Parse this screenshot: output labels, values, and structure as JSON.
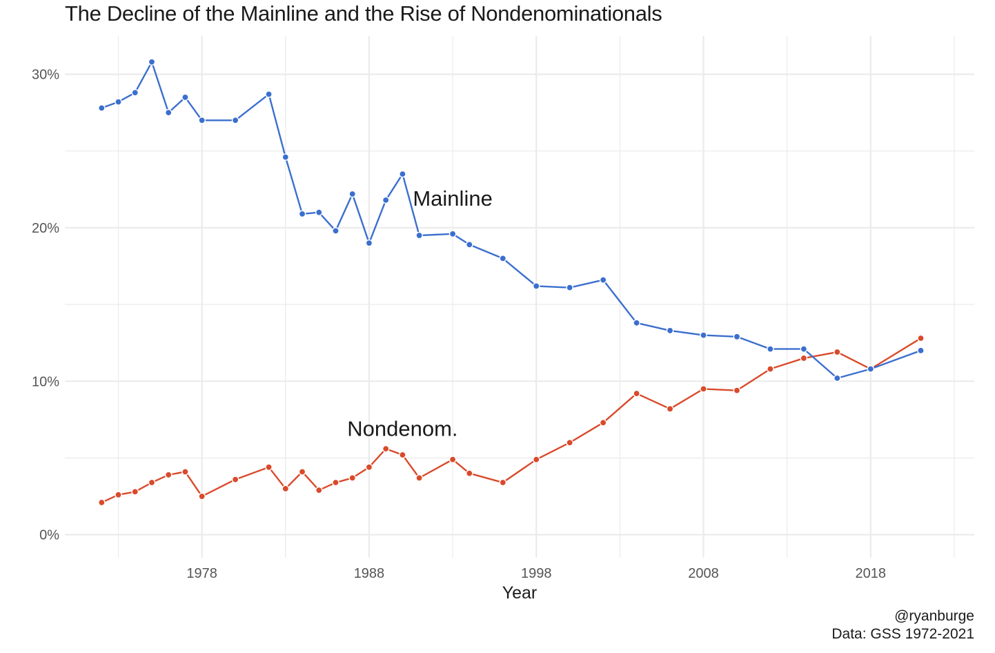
{
  "title": "The Decline of the Mainline and the Rise of Nondenominationals",
  "caption": {
    "author": "@ryanburge",
    "source": "Data: GSS 1972-2021"
  },
  "colors": {
    "mainline": "#3b6fce",
    "nondenom": "#d94a2b",
    "grid": "#ebebeb"
  },
  "chart_data": {
    "type": "line",
    "xlabel": "Year",
    "ylabel": "",
    "xlim": [
      1969.8,
      2024.2
    ],
    "ylim": [
      -1.5,
      32.5
    ],
    "x_ticks": [
      1978,
      1988,
      1998,
      2008,
      2018
    ],
    "x_tick_labels": [
      "1978",
      "1988",
      "1998",
      "2008",
      "2018"
    ],
    "y_ticks": [
      0,
      10,
      20,
      30
    ],
    "y_tick_labels": [
      "0%",
      "10%",
      "20%",
      "30%"
    ],
    "grid": true,
    "legend": "none (direct labels)",
    "series": [
      {
        "name": "Mainline",
        "color": "#3b6fce",
        "x": [
          1972,
          1973,
          1974,
          1975,
          1976,
          1977,
          1978,
          1980,
          1982,
          1983,
          1984,
          1985,
          1986,
          1987,
          1988,
          1989,
          1990,
          1991,
          1993,
          1994,
          1996,
          1998,
          2000,
          2002,
          2004,
          2006,
          2008,
          2010,
          2012,
          2014,
          2016,
          2018,
          2021
        ],
        "y": [
          27.8,
          28.2,
          28.8,
          30.8,
          27.5,
          28.5,
          27.0,
          27.0,
          28.7,
          24.6,
          20.9,
          21.0,
          19.8,
          22.2,
          19.0,
          21.8,
          23.5,
          19.5,
          19.6,
          18.9,
          18.0,
          16.2,
          16.1,
          16.6,
          13.8,
          13.3,
          13.0,
          12.9,
          12.1,
          12.1,
          10.2,
          10.8,
          12.0
        ]
      },
      {
        "name": "Nondenom.",
        "color": "#d94a2b",
        "x": [
          1972,
          1973,
          1974,
          1975,
          1976,
          1977,
          1978,
          1980,
          1982,
          1983,
          1984,
          1985,
          1986,
          1987,
          1988,
          1989,
          1990,
          1991,
          1993,
          1994,
          1996,
          1998,
          2000,
          2002,
          2004,
          2006,
          2008,
          2010,
          2012,
          2014,
          2016,
          2018,
          2021
        ],
        "y": [
          2.1,
          2.6,
          2.8,
          3.4,
          3.9,
          4.1,
          2.5,
          3.6,
          4.4,
          3.0,
          4.1,
          2.9,
          3.4,
          3.7,
          4.4,
          5.6,
          5.2,
          3.7,
          4.9,
          4.0,
          3.4,
          4.9,
          6.0,
          7.3,
          9.2,
          8.2,
          9.5,
          9.4,
          10.8,
          11.5,
          11.9,
          10.8,
          12.8
        ]
      }
    ],
    "annotations": [
      {
        "text": "Mainline",
        "x": 1993.0,
        "y": 21.8
      },
      {
        "text": "Nondenom.",
        "x": 1990.0,
        "y": 6.8
      }
    ]
  }
}
